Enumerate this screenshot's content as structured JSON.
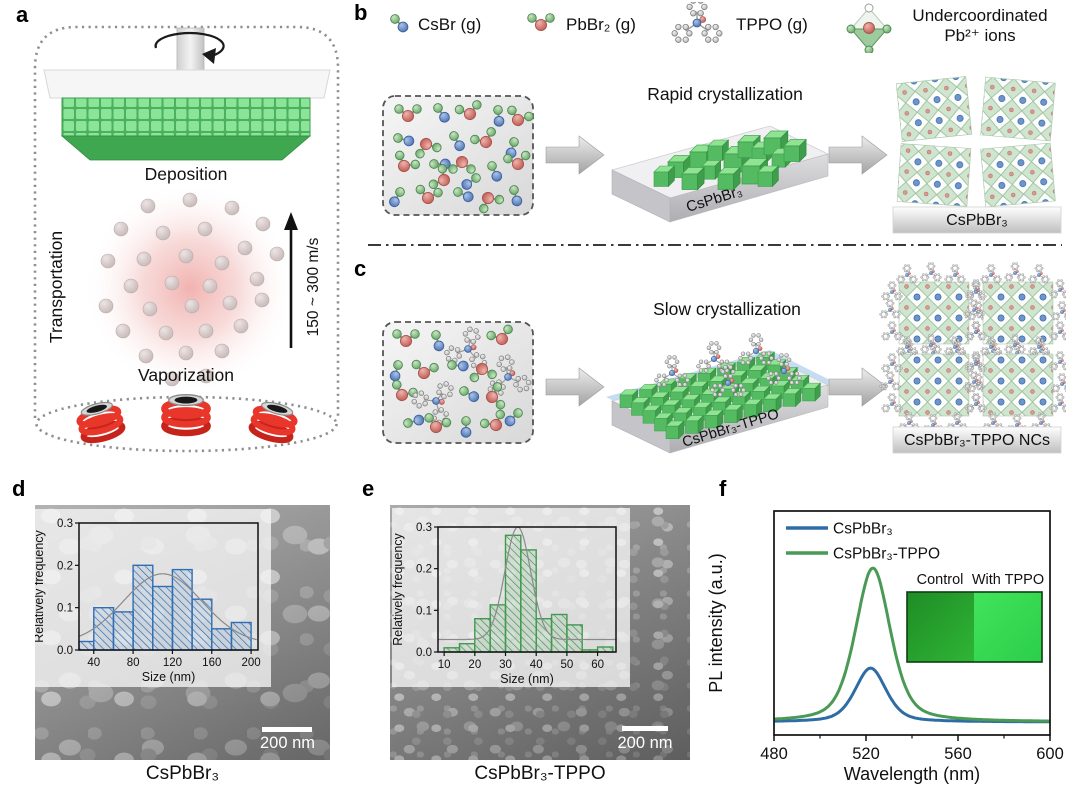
{
  "panel_a": {
    "label": "a",
    "deposition_label": "Deposition",
    "transportation_label": "Transportation",
    "vaporization_label": "Vaporization",
    "speed_label": "150 ~ 300 m/s"
  },
  "panel_b": {
    "label": "b",
    "legend": {
      "csbr": "CsBr (g)",
      "pbbr2": "PbBr₂ (g)",
      "tppo": "TPPO (g)",
      "undercoordinated": "Undercoordinated Pb²⁺ ions"
    },
    "process_label": "Rapid crystallization",
    "film_label": "CsPbBr₃",
    "product_label": "CsPbBr₃"
  },
  "panel_c": {
    "label": "c",
    "process_label": "Slow crystallization",
    "film_label": "CsPbBr₃-TPPO",
    "product_label": "CsPbBr₃-TPPO NCs"
  },
  "panel_d": {
    "label": "d",
    "caption": "CsPbBr₃",
    "scale_bar": "200 nm"
  },
  "panel_e": {
    "label": "e",
    "caption": "CsPbBr₃-TPPO",
    "scale_bar": "200 nm"
  },
  "panel_f": {
    "label": "f",
    "inset_control": "Control",
    "inset_tppo": "With TPPO"
  },
  "chart_data": [
    {
      "id": "hist_d",
      "panel": "d",
      "type": "bar",
      "xlabel": "Size (nm)",
      "ylabel": "Relatively frequency",
      "xlim": [
        25,
        207
      ],
      "ylim": [
        0,
        0.3
      ],
      "xticks": [
        40,
        80,
        120,
        160,
        200
      ],
      "yticks": [
        0,
        0.1,
        0.2,
        0.3
      ],
      "bar_color": "#2f6eb5",
      "hatch": "diagonal",
      "bins": [
        [
          25,
          40
        ],
        [
          40,
          60
        ],
        [
          60,
          80
        ],
        [
          80,
          100
        ],
        [
          100,
          120
        ],
        [
          120,
          140
        ],
        [
          140,
          160
        ],
        [
          160,
          180
        ],
        [
          180,
          200
        ]
      ],
      "values": [
        0.02,
        0.1,
        0.09,
        0.2,
        0.15,
        0.19,
        0.12,
        0.05,
        0.065
      ],
      "fit_curve": {
        "shape": "gaussian",
        "center": 110,
        "sigma": 40,
        "amplitude": 0.165,
        "baseline": 0.015,
        "color": "#8a8a8a"
      }
    },
    {
      "id": "hist_e",
      "panel": "e",
      "type": "bar",
      "xlabel": "Size (nm)",
      "ylabel": "Relatively frequency",
      "xlim": [
        8,
        66
      ],
      "ylim": [
        0,
        0.3
      ],
      "xticks": [
        10,
        20,
        30,
        40,
        50,
        60
      ],
      "yticks": [
        0,
        0.1,
        0.2,
        0.3
      ],
      "bar_color": "#3f9a4d",
      "hatch": "diagonal",
      "bins": [
        [
          10,
          15
        ],
        [
          15,
          20
        ],
        [
          20,
          25
        ],
        [
          25,
          30
        ],
        [
          30,
          35
        ],
        [
          35,
          40
        ],
        [
          40,
          45
        ],
        [
          45,
          50
        ],
        [
          50,
          55
        ],
        [
          55,
          60
        ],
        [
          60,
          65
        ]
      ],
      "values": [
        0.01,
        0.02,
        0.08,
        0.113,
        0.28,
        0.245,
        0.08,
        0.09,
        0.065,
        0.005,
        0.012
      ],
      "fit_curve": {
        "shape": "gaussian",
        "center": 34,
        "sigma": 4.2,
        "amplitude": 0.27,
        "baseline": 0.03,
        "color": "#8a8a8a"
      }
    },
    {
      "id": "pl_spectra",
      "panel": "f",
      "type": "line",
      "xlabel": "Wavelength (nm)",
      "ylabel": "PL intensity (a.u.)",
      "xlim": [
        480,
        600
      ],
      "xticks": [
        480,
        520,
        560,
        600
      ],
      "xticks_minor": [
        500,
        540,
        580
      ],
      "legend_position": "top-left",
      "series": [
        {
          "name": "CsPbBr₃",
          "color": "#2e6da4",
          "peak_nm": 522,
          "fwhm_nm": 16,
          "rel_intensity": 0.35
        },
        {
          "name": "CsPbBr₃-TPPO",
          "color": "#4a9a55",
          "peak_nm": 523,
          "fwhm_nm": 18,
          "rel_intensity": 1.0
        }
      ]
    }
  ]
}
